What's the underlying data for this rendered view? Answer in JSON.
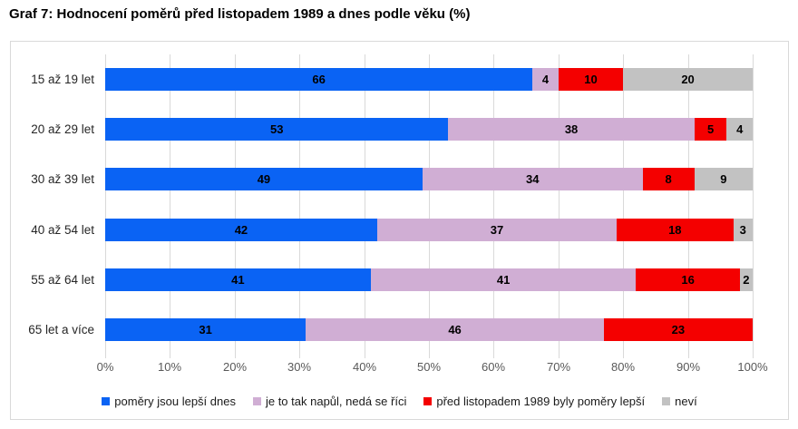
{
  "title": "Graf 7: Hodnocení poměrů před listopadem 1989 a dnes podle věku (%)",
  "colors": {
    "background": "#ffffff",
    "frame_border": "#d9d9d9",
    "grid": "#d9d9d9",
    "axis_text": "#595959",
    "category_text": "#262626",
    "value_text": "#000000",
    "legend_text": "#1a1a1a",
    "series_blue": "#0a63f4",
    "series_pink": "#d0aed4",
    "series_red": "#f40000",
    "series_gray": "#c2c2c2"
  },
  "chart_data": {
    "type": "bar",
    "stacked": true,
    "orientation": "horizontal",
    "title": "Graf 7: Hodnocení poměrů před listopadem 1989 a dnes podle věku (%)",
    "categories": [
      "15 až 19 let",
      "20 až 29 let",
      "30 až 39 let",
      "40 až 54 let",
      "55 až 64 let",
      "65 let a více"
    ],
    "series": [
      {
        "name": "poměry jsou lepší dnes",
        "color": "#0a63f4",
        "values": [
          66,
          53,
          49,
          42,
          41,
          31
        ]
      },
      {
        "name": "je to tak napůl, nedá se říci",
        "color": "#d0aed4",
        "values": [
          4,
          38,
          34,
          37,
          41,
          46
        ]
      },
      {
        "name": "před listopadem 1989 byly poměry lepší",
        "color": "#f40000",
        "values": [
          10,
          5,
          8,
          18,
          16,
          23
        ]
      },
      {
        "name": "neví",
        "color": "#c2c2c2",
        "values": [
          20,
          4,
          9,
          3,
          2,
          0
        ]
      }
    ],
    "x_ticks": [
      "0%",
      "10%",
      "20%",
      "30%",
      "40%",
      "50%",
      "60%",
      "70%",
      "80%",
      "90%",
      "100%"
    ],
    "xlim": [
      0,
      100
    ],
    "grid": true,
    "value_labels": true,
    "legend_position": "bottom"
  }
}
